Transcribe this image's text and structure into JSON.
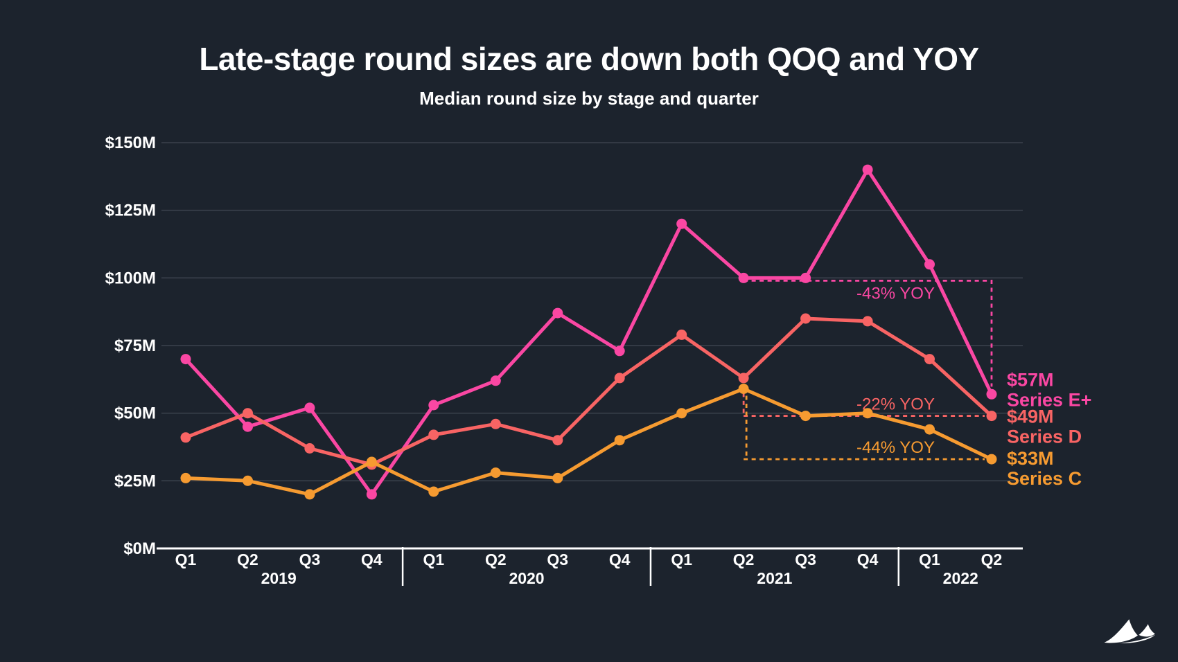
{
  "slide": {
    "title": "Late-stage round sizes are down both QOQ and YOY",
    "subtitle": "Median round size by stage and quarter"
  },
  "colors": {
    "background": "#1c232d",
    "grid": "#39404b",
    "axis": "#ffffff",
    "text": "#ffffff",
    "series_e_plus": "#fa47a3",
    "series_d": "#f86464",
    "series_c": "#f69b31"
  },
  "chart_data": {
    "type": "line",
    "title": "Late-stage round sizes are down both QOQ and YOY",
    "subtitle": "Median round size by stage and quarter",
    "unit": "$M",
    "ylim": [
      0,
      150
    ],
    "grid": "horizontal",
    "y_axis": {
      "ticks": [
        {
          "label": "$150M",
          "value": 150
        },
        {
          "label": "$125M",
          "value": 125
        },
        {
          "label": "$100M",
          "value": 100
        },
        {
          "label": "$75M",
          "value": 75
        },
        {
          "label": "$50M",
          "value": 50
        },
        {
          "label": "$25M",
          "value": 25
        },
        {
          "label": "$0M",
          "value": 0
        }
      ]
    },
    "years": [
      {
        "label": "2019",
        "quarters": [
          "Q1",
          "Q2",
          "Q3",
          "Q4"
        ]
      },
      {
        "label": "2020",
        "quarters": [
          "Q1",
          "Q2",
          "Q3",
          "Q4"
        ]
      },
      {
        "label": "2021",
        "quarters": [
          "Q1",
          "Q2",
          "Q3",
          "Q4"
        ]
      },
      {
        "label": "2022",
        "quarters": [
          "Q1",
          "Q2"
        ]
      }
    ],
    "series": [
      {
        "name": "Series E+",
        "color": "#fa47a3",
        "end_label_value": "$57M",
        "values": [
          70,
          45,
          52,
          20,
          53,
          62,
          87,
          73,
          120,
          100,
          100,
          140,
          105,
          57
        ]
      },
      {
        "name": "Series D",
        "color": "#f86464",
        "end_label_value": "$49M",
        "values": [
          41,
          50,
          37,
          31,
          42,
          46,
          40,
          63,
          79,
          63,
          85,
          84,
          70,
          49
        ]
      },
      {
        "name": "Series C",
        "color": "#f69b31",
        "end_label_value": "$33M",
        "values": [
          26,
          25,
          20,
          32,
          21,
          28,
          26,
          40,
          50,
          59,
          49,
          50,
          44,
          33
        ]
      }
    ],
    "annotations": [
      {
        "label": "-43% YOY",
        "series_index": 0,
        "shape": "over",
        "from_quarter": "Q2 2021",
        "to_quarter": "Q2 2022",
        "from_idx": 9,
        "to_idx": 13,
        "from_value": 100,
        "to_value": 57
      },
      {
        "label": "-22% YOY",
        "series_index": 1,
        "shape": "under",
        "from_quarter": "Q2 2021",
        "to_quarter": "Q2 2022",
        "from_idx": 9,
        "to_idx": 13,
        "from_value": 63,
        "to_value": 49
      },
      {
        "label": "-44% YOY",
        "series_index": 2,
        "shape": "under",
        "from_quarter": "Q2 2021",
        "to_quarter": "Q2 2022",
        "from_idx": 9,
        "to_idx": 13,
        "from_value": 59,
        "to_value": 33
      }
    ]
  },
  "logo": {
    "name": "dune-logo"
  }
}
